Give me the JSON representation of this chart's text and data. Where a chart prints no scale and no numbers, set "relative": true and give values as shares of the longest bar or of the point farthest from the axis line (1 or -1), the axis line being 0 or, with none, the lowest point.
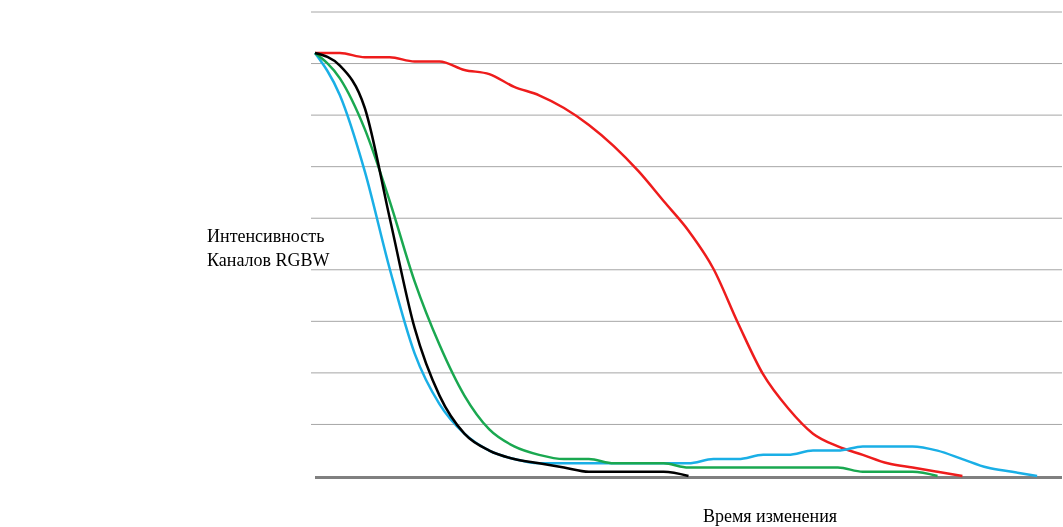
{
  "chart_data": {
    "type": "line",
    "relative": true,
    "xlabel": "Время изменения",
    "ylabel": "Интенсивность\nКаналов RGBW",
    "grid": "y",
    "marker": "none",
    "line_style": "solid",
    "categories": [
      null,
      null,
      null,
      null,
      null,
      null,
      null,
      null,
      null,
      null,
      null,
      null,
      null,
      null,
      null,
      null,
      null,
      null,
      null,
      null,
      null,
      null,
      null,
      null,
      null,
      null,
      null,
      null,
      null,
      null,
      null
    ],
    "series": [
      {
        "color": "#ee1c1c",
        "values": [
          1,
          1,
          0.99,
          0.99,
          0.98,
          0.98,
          0.96,
          0.95,
          0.92,
          0.9,
          0.87,
          0.83,
          0.78,
          0.72,
          0.65,
          0.58,
          0.49,
          0.36,
          0.24,
          0.16,
          0.1,
          0.07,
          0.05,
          0.03,
          0.02,
          0.01,
          0,
          null,
          null,
          null,
          null
        ]
      },
      {
        "color": "#1aafe6",
        "values": [
          1,
          0.9,
          0.72,
          0.49,
          0.29,
          0.17,
          0.1,
          0.06,
          0.04,
          0.03,
          0.03,
          0.03,
          0.03,
          0.03,
          0.03,
          0.03,
          0.04,
          0.04,
          0.05,
          0.05,
          0.06,
          0.06,
          0.07,
          0.07,
          0.07,
          0.06,
          0.04,
          0.02,
          0.01,
          0,
          null
        ]
      },
      {
        "color": "#1aa850",
        "values": [
          1,
          0.94,
          0.82,
          0.65,
          0.46,
          0.31,
          0.19,
          0.11,
          0.07,
          0.05,
          0.04,
          0.04,
          0.03,
          0.03,
          0.03,
          0.02,
          0.02,
          0.02,
          0.02,
          0.02,
          0.02,
          0.02,
          0.01,
          0.01,
          0.01,
          0,
          null,
          null,
          null,
          null,
          null
        ]
      },
      {
        "color": "#000000",
        "values": [
          1,
          0.97,
          0.87,
          0.61,
          0.35,
          0.19,
          0.1,
          0.06,
          0.04,
          0.03,
          0.02,
          0.01,
          0.01,
          0.01,
          0.01,
          0,
          null,
          null,
          null,
          null,
          null,
          null,
          null,
          null,
          null,
          null,
          null,
          null,
          null,
          null,
          null
        ]
      }
    ]
  }
}
